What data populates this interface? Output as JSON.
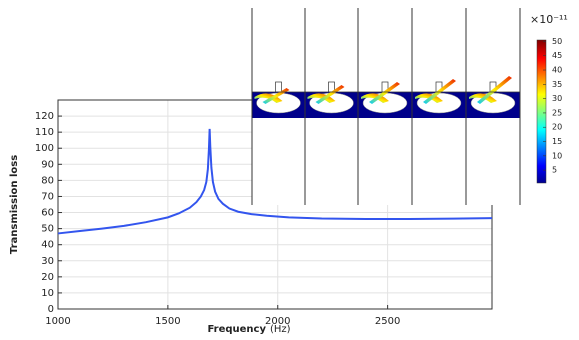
{
  "chart_data": {
    "type": "line",
    "xlabel": "Frequency",
    "xunit": "(Hz)",
    "ylabel": "Transmission loss",
    "x": [
      1000,
      1100,
      1200,
      1300,
      1400,
      1500,
      1550,
      1600,
      1630,
      1650,
      1665,
      1675,
      1682,
      1687,
      1690,
      1693,
      1698,
      1705,
      1715,
      1730,
      1750,
      1780,
      1820,
      1880,
      1950,
      2050,
      2200,
      2400,
      2600,
      2800,
      2975
    ],
    "series": [
      {
        "name": "Transmission loss",
        "color": "#3355ee",
        "values": [
          47,
          48.5,
          50,
          51.7,
          54,
          57,
          59.5,
          63,
          66.5,
          70,
          74,
          79,
          87,
          100,
          112,
          101,
          88,
          79,
          73,
          68.5,
          65.5,
          62.5,
          60.5,
          59,
          58,
          57,
          56.3,
          56,
          56,
          56.2,
          56.5
        ]
      }
    ],
    "xlim": [
      1000,
      2975
    ],
    "xticks": [
      1000,
      1500,
      2000,
      2500
    ],
    "ylim": [
      0,
      130
    ],
    "yticks": [
      0,
      10,
      20,
      30,
      40,
      50,
      60,
      70,
      80,
      90,
      100,
      110,
      120
    ],
    "grid": true,
    "colorbar": {
      "title": "×10⁻¹¹",
      "clim": [
        0.5,
        50.5
      ],
      "ticks": [
        5,
        10,
        15,
        20,
        25,
        30,
        35,
        40,
        45,
        50
      ],
      "colormap": "jet"
    }
  }
}
